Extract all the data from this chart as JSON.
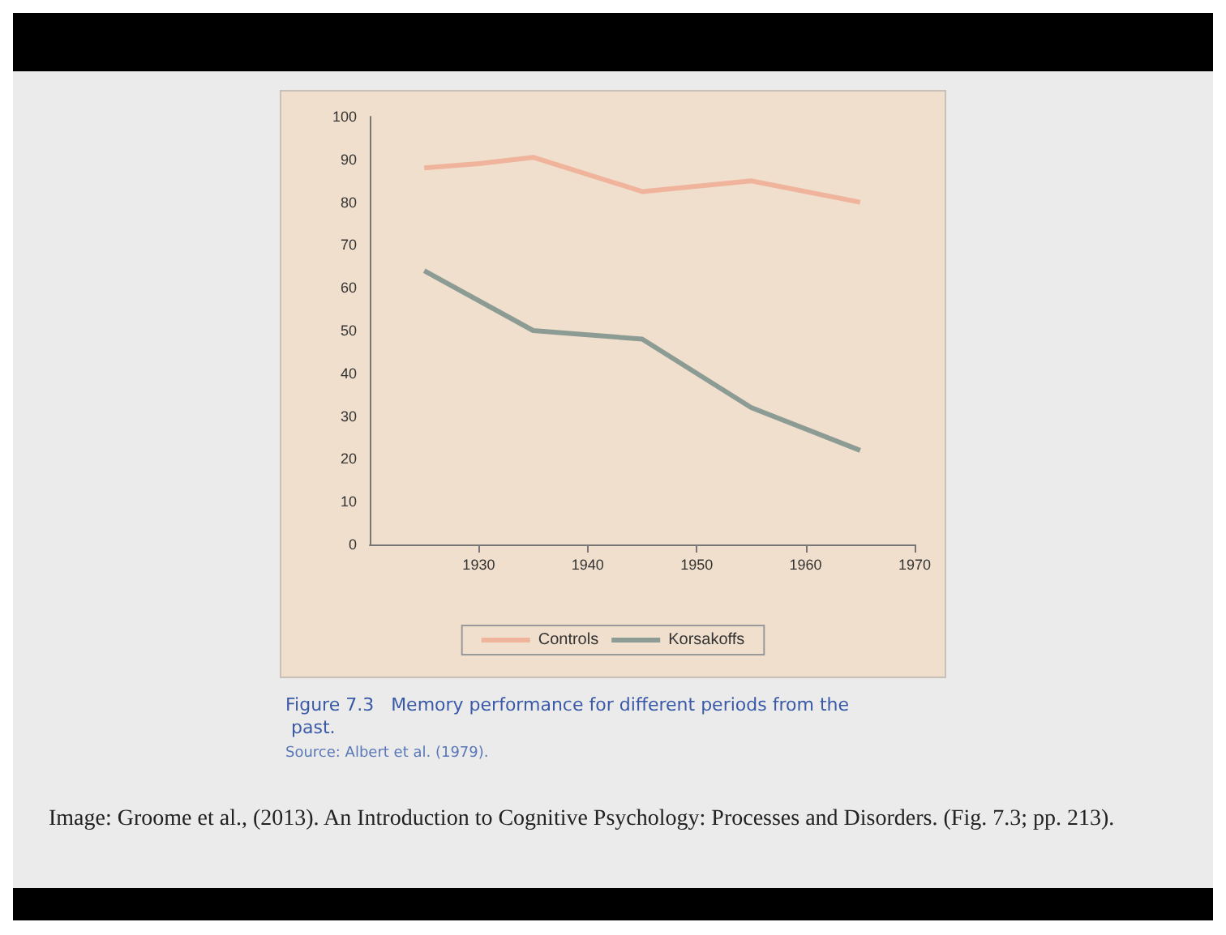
{
  "chart_data": {
    "type": "line",
    "xlim": [
      1920,
      1970
    ],
    "xticks": [
      1930,
      1940,
      1950,
      1960,
      1970
    ],
    "ylim": [
      0,
      100
    ],
    "yticks": [
      0,
      10,
      20,
      30,
      40,
      50,
      60,
      70,
      80,
      90,
      100
    ],
    "grid": false,
    "legend": "bottom",
    "series": [
      {
        "name": "Controls",
        "color": "#f0b49c",
        "x": [
          1925,
          1930,
          1935,
          1945,
          1955,
          1965
        ],
        "values": [
          88,
          89,
          90.5,
          82.5,
          85,
          80
        ]
      },
      {
        "name": "Korsakoffs",
        "color": "#8c9c94",
        "x": [
          1925,
          1935,
          1940,
          1945,
          1955,
          1965
        ],
        "values": [
          64,
          50,
          49,
          48,
          32,
          22
        ]
      }
    ],
    "annotations": [
      "Figure 7.3   Memory performance for different periods from the past.",
      "Source: Albert et al. (1979).",
      "Image: Groome et al., (2013). An Introduction to Cognitive Psychology: Processes and Disorders. (Fig. 7.3; pp. 213)."
    ]
  }
}
